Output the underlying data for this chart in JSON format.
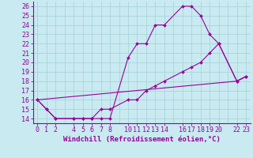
{
  "xlabel": "Windchill (Refroidissement éolien,°C)",
  "bg_color": "#c8eaf0",
  "line_color": "#990099",
  "grid_color": "#aad4dc",
  "xticks": [
    0,
    1,
    2,
    4,
    5,
    6,
    7,
    8,
    10,
    11,
    12,
    13,
    14,
    16,
    17,
    18,
    19,
    20,
    22,
    23
  ],
  "yticks": [
    14,
    15,
    16,
    17,
    18,
    19,
    20,
    21,
    22,
    23,
    24,
    25,
    26
  ],
  "ylim": [
    13.5,
    26.5
  ],
  "xlim": [
    -0.5,
    23.5
  ],
  "grid_xticks": [
    0,
    1,
    2,
    3,
    4,
    5,
    6,
    7,
    8,
    9,
    10,
    11,
    12,
    13,
    14,
    15,
    16,
    17,
    18,
    19,
    20,
    21,
    22,
    23
  ],
  "grid_yticks": [
    14,
    15,
    16,
    17,
    18,
    19,
    20,
    21,
    22,
    23,
    24,
    25,
    26
  ],
  "line1_x": [
    0,
    1,
    2,
    4,
    5,
    6,
    7,
    8,
    10,
    11,
    12,
    13,
    14,
    16,
    17,
    18,
    19,
    20,
    22,
    23
  ],
  "line1_y": [
    16,
    15,
    14,
    14,
    14,
    14,
    14,
    14,
    20.5,
    22,
    22,
    24,
    24,
    26,
    26,
    25,
    23,
    22,
    18,
    18.5
  ],
  "line2_x": [
    0,
    1,
    2,
    4,
    5,
    6,
    7,
    8,
    10,
    11,
    12,
    13,
    14,
    16,
    17,
    18,
    19,
    20,
    22,
    23
  ],
  "line2_y": [
    16,
    15,
    14,
    14,
    14,
    14,
    15,
    15,
    16,
    16,
    17,
    17.5,
    18,
    19,
    19.5,
    20,
    21,
    22,
    18,
    18.5
  ],
  "line3_x": [
    0,
    22,
    23
  ],
  "line3_y": [
    16,
    18,
    18.5
  ],
  "xlabel_fontsize": 6.5,
  "tick_fontsize": 6.0
}
